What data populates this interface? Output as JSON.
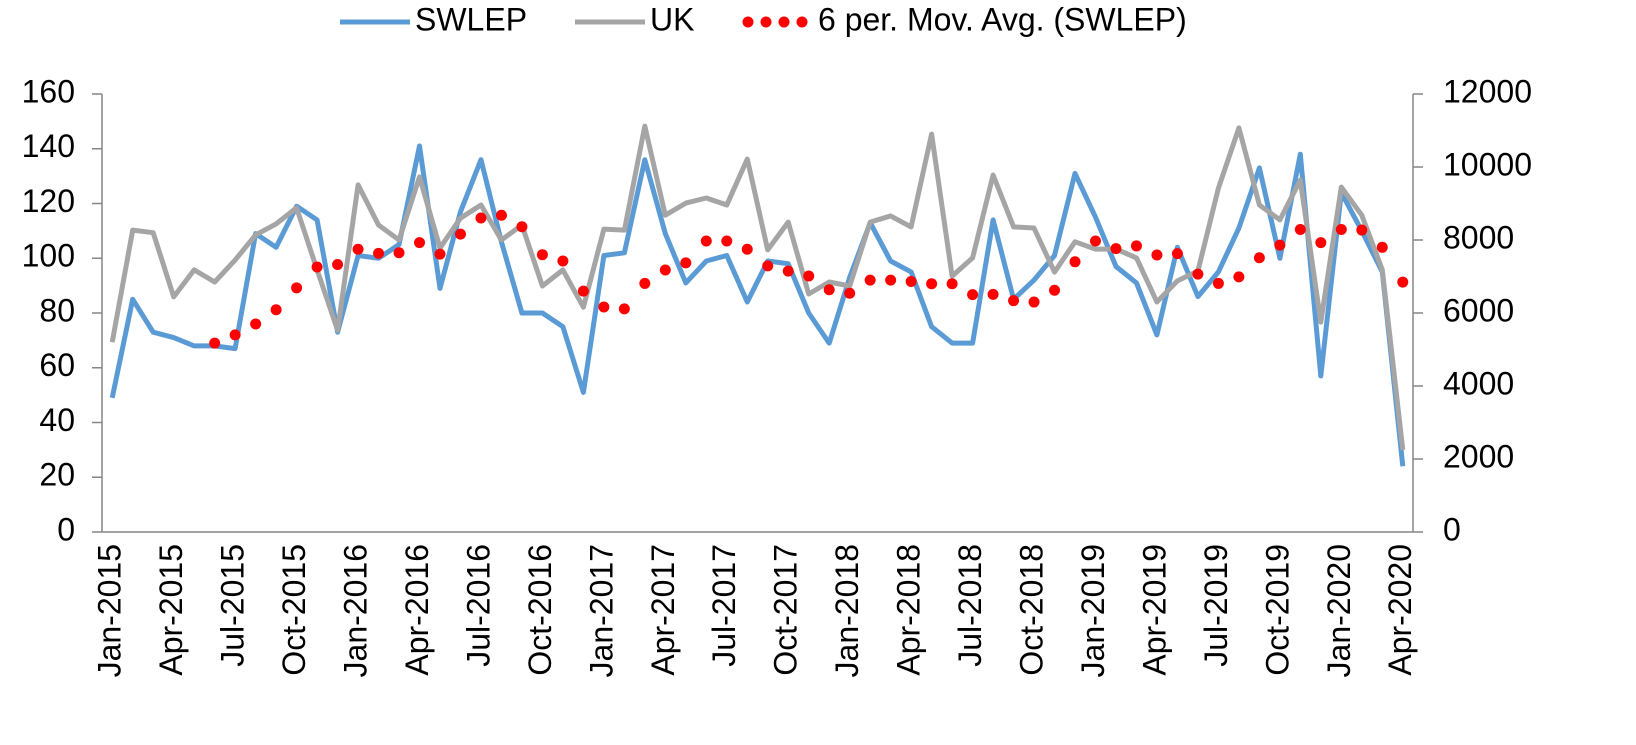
{
  "chart_data": {
    "type": "line",
    "categories": [
      "Jan-2015",
      null,
      null,
      "Apr-2015",
      null,
      null,
      "Jul-2015",
      null,
      null,
      "Oct-2015",
      null,
      null,
      "Jan-2016",
      null,
      null,
      "Apr-2016",
      null,
      null,
      "Jul-2016",
      null,
      null,
      "Oct-2016",
      null,
      null,
      "Jan-2017",
      null,
      null,
      "Apr-2017",
      null,
      null,
      "Jul-2017",
      null,
      null,
      "Oct-2017",
      null,
      null,
      "Jan-2018",
      null,
      null,
      "Apr-2018",
      null,
      null,
      "Jul-2018",
      null,
      null,
      "Oct-2018",
      null,
      null,
      "Jan-2019",
      null,
      null,
      "Apr-2019",
      null,
      null,
      "Jul-2019",
      null,
      null,
      "Oct-2019",
      null,
      null,
      "Jan-2020",
      null,
      null,
      "Apr-2020"
    ],
    "series": [
      {
        "name": "SWLEP",
        "color": "#5b9bd5",
        "values": [
          49,
          85,
          73,
          71,
          68,
          68,
          67,
          109,
          104,
          119,
          114,
          73,
          101,
          100,
          105,
          141,
          89,
          117,
          136,
          106,
          80,
          80,
          75,
          51,
          101,
          102,
          136,
          109,
          91,
          99,
          101,
          84,
          99,
          98,
          80,
          69,
          93,
          113,
          99,
          95,
          75,
          69,
          69,
          114,
          85,
          92,
          101,
          131,
          115,
          97,
          91,
          72,
          104,
          86,
          95,
          111,
          133,
          100,
          138,
          57,
          124,
          110,
          95,
          24
        ]
      },
      {
        "name": "UK",
        "color": "#a5a5a5",
        "axis": "y2",
        "values": [
          5200,
          8270,
          8200,
          6440,
          7180,
          6850,
          7450,
          8140,
          8440,
          8880,
          7180,
          5530,
          9510,
          8410,
          8000,
          9730,
          7780,
          8600,
          8960,
          8000,
          8410,
          6740,
          7180,
          6160,
          8300,
          8270,
          11120,
          8680,
          9010,
          9150,
          8960,
          10220,
          7730,
          8490,
          6520,
          6850,
          6740,
          8490,
          8660,
          8360,
          10900,
          7010,
          7510,
          9780,
          8360,
          8330,
          7120,
          7950,
          7750,
          7750,
          7510,
          6300,
          6880,
          7150,
          9420,
          11070,
          8960,
          8550,
          9640,
          5750,
          9450,
          8680,
          7180,
          2250
        ]
      },
      {
        "name": "6 per. Mov. Avg. (SWLEP)",
        "color": "#ff0000",
        "style": "dots",
        "values": [
          null,
          null,
          null,
          null,
          null,
          69,
          72,
          76,
          81.2,
          89.2,
          96.8,
          97.7,
          103.3,
          101.8,
          102,
          105.7,
          101.5,
          108.8,
          114.7,
          115.7,
          111.5,
          101.3,
          99,
          88,
          82.2,
          81.5,
          90.8,
          95.7,
          98.3,
          106.3,
          106.3,
          103.3,
          97.2,
          95.3,
          93.5,
          88.5,
          87.2,
          92,
          92,
          91.5,
          90.7,
          90.7,
          86.7,
          86.8,
          84.5,
          84,
          88.3,
          98.7,
          106.3,
          103.5,
          104.5,
          101.2,
          101.7,
          94.2,
          90.8,
          93.2,
          100.2,
          104.8,
          110.5,
          105.7,
          110.5,
          110.3,
          104,
          91.3
        ]
      }
    ],
    "ylim": [
      0,
      160
    ],
    "yticks": [
      0,
      20,
      40,
      60,
      80,
      100,
      120,
      140,
      160
    ],
    "y2lim": [
      0,
      12000
    ],
    "y2ticks": [
      0,
      2000,
      4000,
      6000,
      8000,
      10000,
      12000
    ],
    "legend": "top"
  }
}
